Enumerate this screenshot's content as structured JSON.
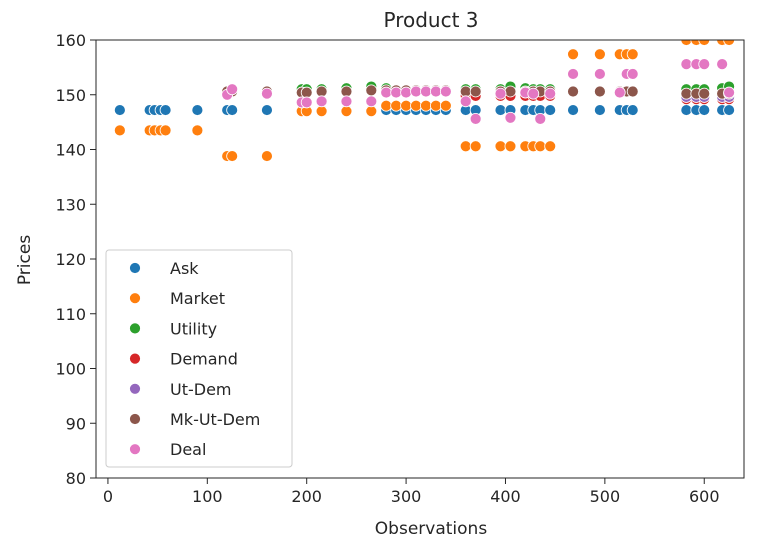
{
  "chart_data": {
    "type": "scatter",
    "title": "Product 3",
    "xlabel": "Observations",
    "ylabel": "Prices",
    "xlim": [
      -12,
      640
    ],
    "ylim": [
      80,
      160
    ],
    "xticks": [
      0,
      100,
      200,
      300,
      400,
      500,
      600
    ],
    "yticks": [
      80,
      90,
      100,
      110,
      120,
      130,
      140,
      150,
      160
    ],
    "grid": false,
    "legend": "lower-left",
    "series": [
      {
        "name": "Ask",
        "color": "#1f77b4",
        "x": [
          12,
          42,
          47,
          53,
          58,
          90,
          120,
          125,
          160,
          195,
          200,
          215,
          240,
          265,
          280,
          290,
          300,
          310,
          320,
          330,
          340,
          360,
          370,
          395,
          405,
          420,
          428,
          435,
          445,
          468,
          495,
          515,
          522,
          528,
          582,
          592,
          600,
          618,
          625
        ],
        "y": [
          147.2,
          147.2,
          147.2,
          147.2,
          147.2,
          147.2,
          147.2,
          147.2,
          147.2,
          147.2,
          147.2,
          147.2,
          147.2,
          147.2,
          147.2,
          147.2,
          147.2,
          147.2,
          147.2,
          147.2,
          147.2,
          147.2,
          147.2,
          147.2,
          147.2,
          147.2,
          147.2,
          147.2,
          147.2,
          147.2,
          147.2,
          147.2,
          147.2,
          147.2,
          147.2,
          147.2,
          147.2,
          147.2,
          147.2
        ]
      },
      {
        "name": "Market",
        "color": "#ff7f0e",
        "x": [
          12,
          42,
          47,
          53,
          58,
          90,
          120,
          125,
          160,
          195,
          200,
          215,
          240,
          265,
          280,
          290,
          300,
          310,
          320,
          330,
          340,
          360,
          370,
          395,
          405,
          420,
          428,
          435,
          445,
          468,
          495,
          515,
          522,
          528,
          582,
          592,
          600,
          618,
          625
        ],
        "y": [
          143.5,
          143.5,
          143.5,
          143.5,
          143.5,
          143.5,
          138.8,
          138.8,
          138.8,
          147.0,
          147.0,
          147.0,
          147.0,
          147.0,
          148.0,
          148.0,
          148.0,
          148.0,
          148.0,
          148.0,
          148.0,
          140.6,
          140.6,
          140.6,
          140.6,
          140.6,
          140.6,
          140.6,
          140.6,
          157.4,
          157.4,
          157.4,
          157.4,
          157.4,
          160.0,
          160.0,
          160.0,
          160.0,
          160.0
        ]
      },
      {
        "name": "Utility",
        "color": "#2ca02c",
        "x": [
          195,
          200,
          215,
          240,
          265,
          280,
          360,
          370,
          395,
          405,
          420,
          428,
          435,
          445,
          582,
          592,
          600,
          618,
          625
        ],
        "y": [
          151.0,
          151.0,
          151.0,
          151.2,
          151.5,
          151.2,
          151.0,
          151.0,
          151.0,
          151.5,
          151.2,
          151.0,
          151.0,
          151.0,
          151.0,
          151.0,
          151.0,
          151.2,
          151.5
        ]
      },
      {
        "name": "Demand",
        "color": "#d62728",
        "x": [
          360,
          370,
          395,
          405,
          420,
          428,
          435,
          445,
          582,
          592,
          600,
          618,
          625
        ],
        "y": [
          149.8,
          149.8,
          149.8,
          149.8,
          149.8,
          149.8,
          149.8,
          149.8,
          149.2,
          149.2,
          149.2,
          149.2,
          149.2
        ]
      },
      {
        "name": "Ut-Dem",
        "color": "#9467bd",
        "x": [
          582,
          592,
          600,
          618,
          625
        ],
        "y": [
          149.6,
          149.6,
          149.6,
          149.6,
          149.6
        ]
      },
      {
        "name": "Mk-Ut-Dem",
        "color": "#8c564b",
        "x": [
          120,
          125,
          160,
          195,
          200,
          215,
          240,
          265,
          280,
          290,
          300,
          310,
          320,
          330,
          340,
          360,
          370,
          395,
          405,
          420,
          428,
          435,
          445,
          468,
          495,
          515,
          522,
          528,
          582,
          592,
          600,
          618,
          625
        ],
        "y": [
          150.6,
          150.6,
          150.6,
          150.4,
          150.4,
          150.6,
          150.6,
          150.8,
          150.8,
          150.8,
          150.8,
          150.8,
          150.8,
          150.8,
          150.8,
          150.6,
          150.6,
          150.6,
          150.6,
          150.6,
          150.6,
          150.6,
          150.6,
          150.6,
          150.6,
          150.6,
          150.6,
          150.6,
          150.2,
          150.2,
          150.2,
          150.2,
          150.2
        ]
      },
      {
        "name": "Deal",
        "color": "#e377c2",
        "x": [
          120,
          125,
          160,
          195,
          200,
          215,
          240,
          265,
          280,
          290,
          300,
          310,
          320,
          330,
          340,
          360,
          370,
          395,
          405,
          420,
          428,
          435,
          445,
          468,
          495,
          515,
          522,
          528,
          582,
          592,
          600,
          618,
          625
        ],
        "y": [
          150.0,
          151.0,
          150.2,
          148.6,
          148.6,
          148.8,
          148.8,
          148.8,
          150.4,
          150.4,
          150.4,
          150.6,
          150.6,
          150.6,
          150.6,
          148.8,
          145.6,
          150.2,
          145.8,
          150.4,
          150.2,
          145.6,
          150.2,
          153.8,
          153.8,
          150.4,
          153.8,
          153.8,
          155.6,
          155.6,
          155.6,
          155.6,
          150.4
        ]
      }
    ]
  }
}
